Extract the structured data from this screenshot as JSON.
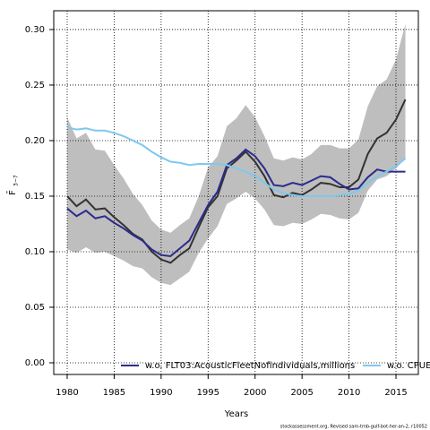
{
  "chart_data": {
    "type": "line",
    "xlabel": "Years",
    "ylabel": {
      "text": "F̄",
      "subscript": "3−7"
    },
    "footnote": "stockassessment.org, Revised  sam-tmb-gulf-bot-her-an-2, r10052",
    "x": [
      1980,
      1981,
      1982,
      1983,
      1984,
      1985,
      1986,
      1987,
      1988,
      1989,
      1990,
      1991,
      1992,
      1993,
      1994,
      1995,
      1996,
      1997,
      1998,
      1999,
      2000,
      2001,
      2002,
      2003,
      2004,
      2005,
      2006,
      2007,
      2008,
      2009,
      2010,
      2011,
      2012,
      2013,
      2014,
      2015,
      2016
    ],
    "band": {
      "color": "#bebebe",
      "upper": [
        0.221,
        0.202,
        0.207,
        0.192,
        0.191,
        0.178,
        0.166,
        0.152,
        0.142,
        0.128,
        0.12,
        0.117,
        0.124,
        0.13,
        0.15,
        0.176,
        0.186,
        0.213,
        0.22,
        0.232,
        0.221,
        0.204,
        0.184,
        0.182,
        0.185,
        0.183,
        0.188,
        0.196,
        0.196,
        0.193,
        0.193,
        0.201,
        0.231,
        0.249,
        0.255,
        0.273,
        0.305
      ],
      "lower": [
        0.102,
        0.099,
        0.104,
        0.099,
        0.1,
        0.096,
        0.092,
        0.087,
        0.085,
        0.077,
        0.072,
        0.07,
        0.076,
        0.082,
        0.099,
        0.112,
        0.123,
        0.143,
        0.148,
        0.154,
        0.148,
        0.138,
        0.124,
        0.123,
        0.126,
        0.125,
        0.129,
        0.134,
        0.133,
        0.13,
        0.129,
        0.135,
        0.155,
        0.165,
        0.168,
        0.175,
        0.184
      ]
    },
    "series": [
      {
        "color": "#333333",
        "values": [
          0.15,
          0.141,
          0.147,
          0.138,
          0.139,
          0.131,
          0.124,
          0.116,
          0.111,
          0.1,
          0.093,
          0.09,
          0.097,
          0.103,
          0.122,
          0.14,
          0.15,
          0.175,
          0.182,
          0.19,
          0.181,
          0.168,
          0.151,
          0.149,
          0.153,
          0.151,
          0.156,
          0.162,
          0.161,
          0.158,
          0.158,
          0.165,
          0.188,
          0.202,
          0.207,
          0.219,
          0.237
        ]
      },
      {
        "name": "w.o. FLT03:AcousticFleetNofindividuals,millions",
        "color": "#2b2b8c",
        "values": [
          0.139,
          0.132,
          0.137,
          0.13,
          0.132,
          0.126,
          0.121,
          0.115,
          0.11,
          0.102,
          0.097,
          0.096,
          0.103,
          0.11,
          0.126,
          0.142,
          0.154,
          0.178,
          0.184,
          0.192,
          0.186,
          0.175,
          0.16,
          0.159,
          0.162,
          0.16,
          0.164,
          0.168,
          0.167,
          0.161,
          0.156,
          0.157,
          0.167,
          0.174,
          0.172,
          0.172,
          0.172
        ]
      },
      {
        "name": "w.o. CPUE",
        "color": "#7ec8ee",
        "values": [
          0.212,
          0.21,
          0.211,
          0.209,
          0.209,
          0.207,
          0.204,
          0.2,
          0.196,
          0.19,
          0.185,
          0.181,
          0.18,
          0.178,
          0.179,
          0.179,
          0.179,
          0.178,
          0.175,
          0.172,
          0.168,
          0.162,
          0.156,
          0.153,
          0.151,
          0.15,
          0.15,
          0.15,
          0.15,
          0.151,
          0.152,
          0.155,
          0.162,
          0.168,
          0.172,
          0.177,
          0.184
        ]
      }
    ],
    "xlim": [
      1978.57,
      2017.38
    ],
    "ylim": [
      -0.0105,
      0.3169
    ],
    "xticks": [
      1980,
      1985,
      1990,
      1995,
      2000,
      2005,
      2010,
      2015
    ],
    "yticks": [
      {
        "value": 0,
        "label": "0.00"
      },
      {
        "value": 0.05,
        "label": "0.05"
      },
      {
        "value": 0.1,
        "label": "0.10"
      },
      {
        "value": 0.15,
        "label": "0.15"
      },
      {
        "value": 0.2,
        "label": "0.20"
      },
      {
        "value": 0.25,
        "label": "0.25"
      },
      {
        "value": 0.3,
        "label": "0.30"
      }
    ],
    "grid": true,
    "legend": "bottom"
  }
}
